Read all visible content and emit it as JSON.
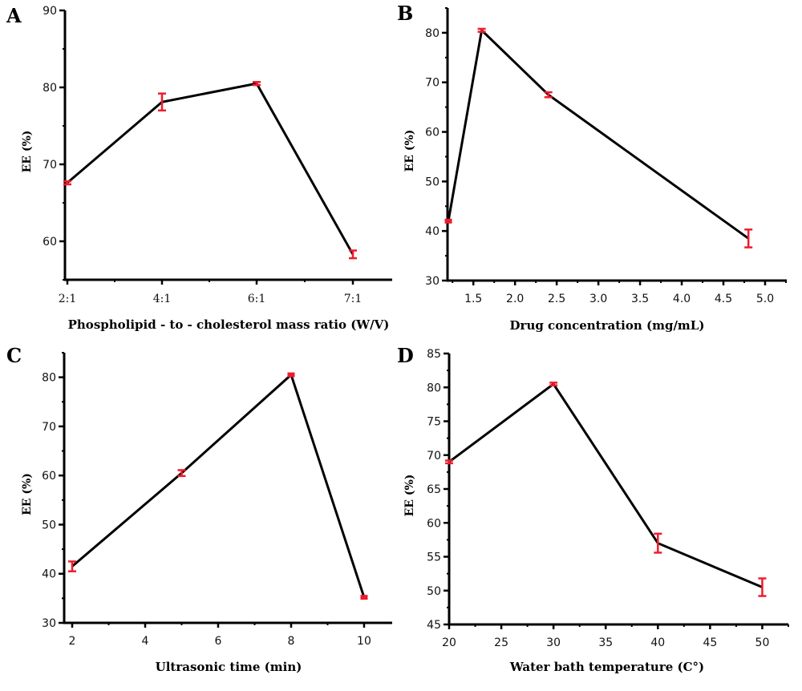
{
  "colors": {
    "axis": "#000000",
    "line": "#000000",
    "marker": "#ee1c2e"
  },
  "chart_data": [
    {
      "panel": "A",
      "type": "line",
      "xlabel": "Phospholipid - to - cholesterol mass ratio (W/V)",
      "ylabel": "EE (%)",
      "x_is_categorical": true,
      "categories": [
        "2:1",
        "4:1",
        "6:1",
        "7:1"
      ],
      "x_tick_labels": [
        "2:1",
        "4:1",
        "6:1",
        "7:1"
      ],
      "y_ticks": [
        60,
        70,
        80,
        90
      ],
      "ylim": [
        55,
        90
      ],
      "y_minor_step": 5,
      "points": [
        {
          "x": "2:1",
          "y": 67.6,
          "err": 0.2
        },
        {
          "x": "4:1",
          "y": 78.1,
          "err": 1.1
        },
        {
          "x": "6:1",
          "y": 80.5,
          "err": 0.2
        },
        {
          "x": "7:1",
          "y": 58.3,
          "err": 0.5
        }
      ]
    },
    {
      "panel": "B",
      "type": "line",
      "xlabel": "Drug concentration (mg/mL)",
      "ylabel": "EE (%)",
      "x_is_categorical": false,
      "x_ticks": [
        1.5,
        2.0,
        2.5,
        3.0,
        3.5,
        4.0,
        4.5,
        5.0
      ],
      "x_tick_labels": [
        "1.5",
        "2.0",
        "2.5",
        "3.0",
        "3.5",
        "4.0",
        "4.5",
        "5.0"
      ],
      "x_minor_step": 0.25,
      "xlim": [
        1.19,
        5.26
      ],
      "y_ticks": [
        30,
        40,
        50,
        60,
        70,
        80
      ],
      "ylim": [
        30,
        85
      ],
      "y_minor_step": 5,
      "points": [
        {
          "x": 1.2,
          "y": 42.0,
          "err": 0.2
        },
        {
          "x": 1.6,
          "y": 80.5,
          "err": 0.3
        },
        {
          "x": 2.4,
          "y": 67.5,
          "err": 0.5
        },
        {
          "x": 4.8,
          "y": 38.5,
          "err": 1.8
        }
      ]
    },
    {
      "panel": "C",
      "type": "line",
      "xlabel": "Ultrasonic time (min)",
      "ylabel": "EE (%)",
      "x_is_categorical": false,
      "x_ticks": [
        2,
        4,
        6,
        8,
        10
      ],
      "x_tick_labels": [
        "2",
        "4",
        "6",
        "8",
        "10"
      ],
      "x_minor_step": 1,
      "xlim": [
        1.78,
        10.77
      ],
      "y_ticks": [
        30,
        40,
        50,
        60,
        70,
        80
      ],
      "ylim": [
        30,
        85
      ],
      "y_minor_step": 5,
      "points": [
        {
          "x": 2,
          "y": 41.5,
          "err": 1.0
        },
        {
          "x": 5,
          "y": 60.5,
          "err": 0.6
        },
        {
          "x": 8,
          "y": 80.5,
          "err": 0.2
        },
        {
          "x": 10,
          "y": 35.2,
          "err": 0.2
        }
      ]
    },
    {
      "panel": "D",
      "type": "line",
      "xlabel": "Water bath temperature (C°)",
      "ylabel": "EE (%)",
      "x_is_categorical": false,
      "x_ticks": [
        20,
        25,
        30,
        35,
        40,
        45,
        50
      ],
      "x_tick_labels": [
        "20",
        "25",
        "30",
        "35",
        "40",
        "45",
        "50"
      ],
      "x_minor_step": 2.5,
      "xlim": [
        20,
        52.5
      ],
      "y_ticks": [
        45,
        50,
        55,
        60,
        65,
        70,
        75,
        80,
        85
      ],
      "ylim": [
        45,
        85
      ],
      "y_minor_step": 2.5,
      "points": [
        {
          "x": 20,
          "y": 69.0,
          "err": 0.2
        },
        {
          "x": 30,
          "y": 80.5,
          "err": 0.2
        },
        {
          "x": 40,
          "y": 57.0,
          "err": 1.4
        },
        {
          "x": 50,
          "y": 50.5,
          "err": 1.3
        }
      ]
    }
  ]
}
